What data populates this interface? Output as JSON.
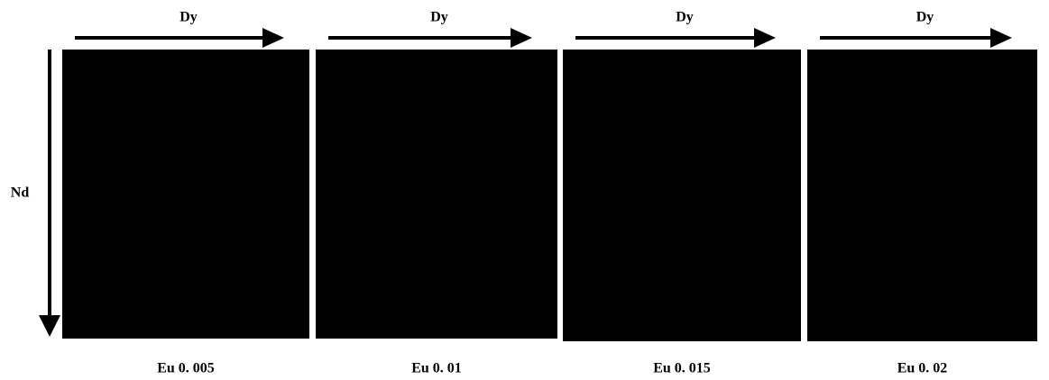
{
  "side_label": "Nd",
  "panels": [
    {
      "top_label": "Dy",
      "caption": "Eu 0. 005"
    },
    {
      "top_label": "Dy",
      "caption": "Eu 0. 01"
    },
    {
      "top_label": "Dy",
      "caption": "Eu 0. 015"
    },
    {
      "top_label": "Dy",
      "caption": "Eu 0. 02"
    }
  ]
}
